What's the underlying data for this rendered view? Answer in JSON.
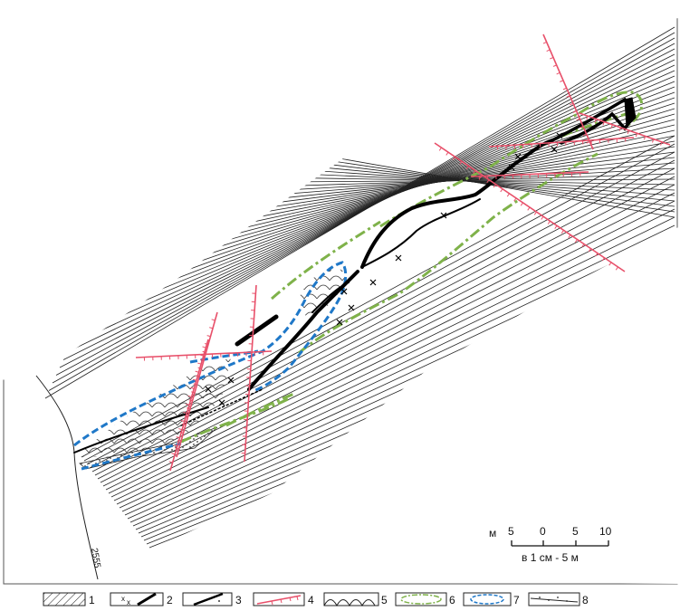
{
  "scale_bar": {
    "unit": "м",
    "ticks": [
      "5",
      "0",
      "5",
      "10"
    ],
    "caption": "в 1 см - 5 м"
  },
  "profile_label": "2555",
  "legend": [
    {
      "number": "1",
      "symbol": "hatched-rock-icon"
    },
    {
      "number": "2",
      "symbol": "thick-vein-with-crosses-icon"
    },
    {
      "number": "3",
      "symbol": "thin-vein-dotted-icon"
    },
    {
      "number": "4",
      "symbol": "fault-line-with-ticks-icon"
    },
    {
      "number": "5",
      "symbol": "scaly-zone-icon"
    },
    {
      "number": "6",
      "symbol": "green-dash-dot-contour-icon"
    },
    {
      "number": "7",
      "symbol": "blue-dashed-contour-icon"
    },
    {
      "number": "8",
      "symbol": "dotted-band-icon"
    }
  ],
  "colors": {
    "fault": "#e8506a",
    "green_contour": "#7fb24a",
    "blue_contour": "#1f78c8",
    "vein": "#000000",
    "strata": "#222222"
  }
}
